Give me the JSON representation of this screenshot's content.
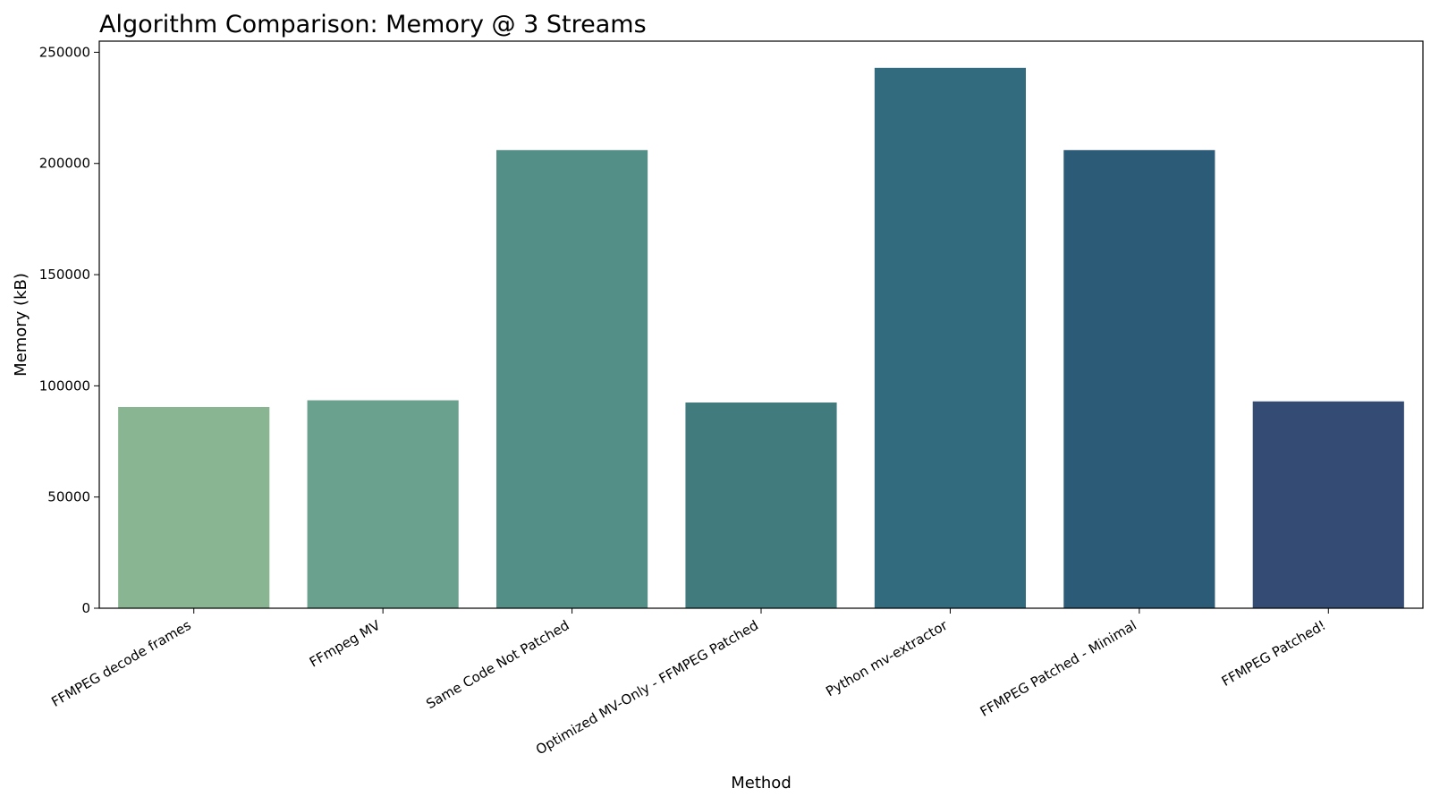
{
  "chart_data": {
    "type": "bar",
    "title": "Algorithm Comparison: Memory @ 3 Streams",
    "xlabel": "Method",
    "ylabel": "Memory (kB)",
    "ylim": [
      0,
      255000
    ],
    "yticks": [
      0,
      50000,
      100000,
      150000,
      200000,
      250000
    ],
    "ytick_labels": [
      "0",
      "50000",
      "100000",
      "150000",
      "200000",
      "250000"
    ],
    "grid": false,
    "categories": [
      "FFMPEG decode frames",
      "FFmpeg MV",
      "Same Code Not Patched",
      "Optimized MV-Only - FFMPEG Patched",
      "Python mv-extractor",
      "FFMPEG Patched - Minimal",
      "FFMPEG Patched!"
    ],
    "values": [
      90500,
      93500,
      206000,
      92500,
      243000,
      206000,
      93000
    ],
    "colors": [
      "#89b593",
      "#6aa08e",
      "#538e87",
      "#417b7e",
      "#326b7d",
      "#2c5b78",
      "#344b73"
    ]
  }
}
